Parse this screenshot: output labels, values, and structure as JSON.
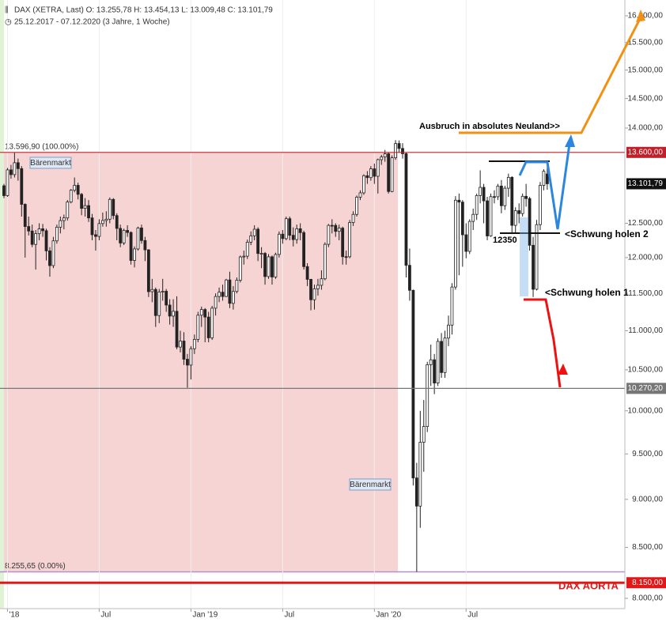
{
  "chart_data": {
    "type": "candlestick",
    "header": {
      "title": "DAX (XETRA, Last)  O: 13.255,78  H: 13.454,13  L: 13.009,48  C: 13.101,79",
      "period": "25.12.2017 - 07.12.2020 (3 Jahre, 1 Woche)"
    },
    "log_scale": true,
    "grid": true,
    "ylim": [
      8000,
      16000
    ],
    "yticks": [
      {
        "value": 8000,
        "label": "8.000,00"
      },
      {
        "value": 8500,
        "label": "8.500,00"
      },
      {
        "value": 9000,
        "label": "9.000,00"
      },
      {
        "value": 9500,
        "label": "9.500,00"
      },
      {
        "value": 10000,
        "label": "10.000,00"
      },
      {
        "value": 10500,
        "label": "10.500,00"
      },
      {
        "value": 11000,
        "label": "11.000,00"
      },
      {
        "value": 11500,
        "label": "11.500,00"
      },
      {
        "value": 12000,
        "label": "12.000,00"
      },
      {
        "value": 12500,
        "label": "12.500,00"
      },
      {
        "value": 14000,
        "label": "14.000,00"
      },
      {
        "value": 14500,
        "label": "14.500,00"
      },
      {
        "value": 15000,
        "label": "15.000,00"
      },
      {
        "value": 15500,
        "label": "15.500,00"
      },
      {
        "value": 16000,
        "label": "16.000,00"
      }
    ],
    "xlim": [
      -1.12,
      176
    ],
    "xticks": [
      {
        "value": 1,
        "label": "'18"
      },
      {
        "value": 27,
        "label": "Jul"
      },
      {
        "value": 53,
        "label": "Jan '19"
      },
      {
        "value": 79,
        "label": "Jul"
      },
      {
        "value": 105,
        "label": "Jan '20"
      },
      {
        "value": 131,
        "label": "Jul"
      }
    ],
    "candles": {
      "open": [
        13070,
        12918,
        13320,
        13245,
        13434,
        13340,
        12785,
        12452,
        12385,
        12190,
        12346,
        12418,
        12390,
        12096,
        11886,
        12241,
        12442,
        12540,
        12580,
        12820,
        13001,
        13077,
        12938,
        12724,
        12766,
        12580,
        12331,
        12306,
        12496,
        12541,
        12561,
        12860,
        12615,
        12424,
        12210,
        12394,
        12364,
        11959,
        12124,
        12430,
        12246,
        12111,
        11523,
        11553,
        11200,
        11519,
        11529,
        11341,
        11193,
        11257,
        10788,
        10865,
        10633,
        10559,
        10767,
        10887,
        11205,
        11281,
        11180,
        10907,
        11299,
        11457,
        11516,
        11457,
        11685,
        11364,
        11526,
        11681,
        12009,
        12020,
        12222,
        12315,
        12412,
        12059,
        12060,
        11732,
        12011,
        11726,
        12045,
        12339,
        12274,
        12568,
        12323,
        12260,
        12419,
        12362,
        11872,
        11693,
        11413,
        11563,
        11611,
        11701,
        12191,
        12469,
        12468,
        12380,
        12428,
        12013,
        12012,
        12511,
        12633,
        12894,
        12961,
        13228,
        13198,
        13337,
        13219,
        13483,
        13526,
        13577,
        12982,
        13513,
        13744,
        13664,
        13579,
        11890,
        11542,
        9232,
        8928,
        9632,
        9815,
        10564,
        10626,
        10336,
        10861,
        10466,
        10904,
        11074,
        11587,
        12848,
        12819,
        12330,
        12089,
        12528,
        12633,
        12919,
        13046,
        12838,
        12313,
        12903,
        12901,
        13066,
        12764,
        13033,
        13202,
        12469,
        12689,
        12645,
        12908,
        12873,
        12177,
        11556,
        12480,
        13077,
        13255.78
      ],
      "high": [
        13100,
        13350,
        13400,
        13597,
        13500,
        13380,
        12800,
        12600,
        12480,
        12400,
        12500,
        12490,
        12420,
        12150,
        12300,
        12480,
        12600,
        12630,
        12850,
        13020,
        13200,
        13120,
        12960,
        12880,
        12850,
        12640,
        12400,
        12560,
        12660,
        12680,
        12890,
        12880,
        12650,
        12480,
        12420,
        12470,
        12380,
        12160,
        12450,
        12480,
        12300,
        12120,
        11700,
        11580,
        11560,
        11700,
        11560,
        11420,
        11420,
        11460,
        11000,
        10980,
        10700,
        10800,
        10950,
        11250,
        11320,
        11300,
        11250,
        11330,
        11500,
        11580,
        11620,
        11700,
        11800,
        11600,
        11720,
        12030,
        12100,
        12260,
        12380,
        12470,
        12440,
        12150,
        12080,
        12050,
        12030,
        12070,
        12380,
        12400,
        12600,
        12600,
        12440,
        12480,
        12500,
        12390,
        11920,
        11700,
        11620,
        11700,
        11820,
        12220,
        12490,
        12560,
        12500,
        12480,
        12450,
        12100,
        12550,
        12680,
        12920,
        13000,
        13250,
        13300,
        13380,
        13420,
        13500,
        13560,
        13640,
        13600,
        13550,
        13800,
        13795,
        13750,
        13600,
        12130,
        11550,
        9400,
        10000,
        10130,
        10600,
        10820,
        10700,
        10900,
        10970,
        11000,
        11200,
        11640,
        12910,
        12950,
        12850,
        12500,
        12560,
        12720,
        12950,
        13313,
        13100,
        12900,
        12950,
        13000,
        13100,
        13160,
        13070,
        13260,
        13220,
        12740,
        12800,
        12950,
        13100,
        12900,
        12300,
        12550,
        13130,
        13330,
        13454.13
      ],
      "low": [
        12880,
        12900,
        13180,
        13200,
        13150,
        12600,
        12000,
        12320,
        12150,
        11830,
        12250,
        12300,
        11960,
        11730,
        11850,
        12200,
        12350,
        12410,
        12540,
        12800,
        12970,
        12860,
        12620,
        12600,
        12520,
        12250,
        12100,
        12250,
        12450,
        12450,
        12500,
        12560,
        12250,
        12150,
        12180,
        12300,
        11900,
        11860,
        12100,
        12200,
        11950,
        11450,
        11380,
        11050,
        11100,
        11400,
        11250,
        11080,
        11050,
        10760,
        10720,
        10560,
        10279,
        10380,
        10700,
        10850,
        11050,
        10850,
        10850,
        10880,
        11200,
        11380,
        11400,
        11450,
        11300,
        11280,
        11500,
        11650,
        11900,
        11980,
        12180,
        12250,
        11950,
        11850,
        11620,
        11700,
        11620,
        11700,
        12000,
        12200,
        12250,
        12250,
        12160,
        12200,
        12250,
        11830,
        11600,
        11270,
        11280,
        11470,
        11550,
        11680,
        12150,
        12350,
        12300,
        12250,
        11900,
        11900,
        11990,
        12460,
        12600,
        12850,
        12930,
        13100,
        13150,
        13100,
        12950,
        13400,
        13450,
        12950,
        12970,
        13480,
        13600,
        13500,
        11720,
        11400,
        9150,
        8256,
        8700,
        9300,
        9750,
        10300,
        10200,
        10300,
        10400,
        10400,
        10800,
        10950,
        11550,
        11750,
        11870,
        11990,
        12050,
        12400,
        12550,
        12800,
        12500,
        12250,
        12300,
        12800,
        12850,
        12650,
        12700,
        12900,
        12340,
        12350,
        12500,
        12600,
        12750,
        12100,
        11450,
        11540,
        12400,
        13000,
        13009.48
      ],
      "close": [
        12918,
        13320,
        13245,
        13434,
        13340,
        12785,
        12452,
        12385,
        12190,
        12346,
        12418,
        12390,
        12096,
        11886,
        12241,
        12442,
        12540,
        12580,
        12820,
        13001,
        13077,
        12938,
        12724,
        12766,
        12580,
        12331,
        12306,
        12496,
        12541,
        12561,
        12860,
        12615,
        12424,
        12210,
        12394,
        12364,
        11959,
        12124,
        12430,
        12246,
        12111,
        11523,
        11553,
        11200,
        11519,
        11529,
        11341,
        11193,
        11257,
        10788,
        10865,
        10633,
        10559,
        10767,
        10887,
        11205,
        11281,
        11180,
        10907,
        11299,
        11457,
        11516,
        11457,
        11685,
        11364,
        11526,
        11681,
        12009,
        12020,
        12222,
        12315,
        12412,
        12059,
        12060,
        11732,
        12011,
        11726,
        12045,
        12339,
        12274,
        12568,
        12323,
        12260,
        12419,
        12362,
        11872,
        11693,
        11413,
        11563,
        11611,
        11701,
        12191,
        12469,
        12468,
        12380,
        12428,
        12013,
        12012,
        12511,
        12633,
        12894,
        12961,
        13228,
        13198,
        13337,
        13219,
        13483,
        13526,
        13577,
        12982,
        13513,
        13744,
        13664,
        13579,
        11890,
        11542,
        9232,
        8928,
        9632,
        9815,
        10564,
        10626,
        10336,
        10861,
        10466,
        10904,
        11074,
        11587,
        12848,
        12819,
        12330,
        12089,
        12528,
        12633,
        12919,
        13046,
        12838,
        12313,
        12903,
        12901,
        13066,
        12764,
        13033,
        13202,
        12469,
        12689,
        12645,
        12908,
        12873,
        12177,
        11556,
        12480,
        13077,
        13298,
        13101.79
      ],
      "up_color": "#ffffff",
      "down_color": "#222222"
    },
    "fib": {
      "high": 13596.9,
      "low": 8255.65,
      "high_label": "13.596,90 (100.00%)",
      "low_label": "8.255,65 (0.00%)",
      "fill": "#f7d4d4",
      "low_line_color": "#b090c8"
    },
    "levels": [
      {
        "value": 13600,
        "label": "13.600,00",
        "color": "#c0202a",
        "line": true
      },
      {
        "value": 13101.79,
        "label": "13.101,79",
        "color": "#111111",
        "line": false
      },
      {
        "value": 10270.2,
        "label": "10.270,20",
        "color": "#777777",
        "line": true
      },
      {
        "value": 8150,
        "label": "8.150,00",
        "color": "#e01818",
        "line": true
      }
    ],
    "annotations": [
      "Bärenmarkt",
      "Bärenmarkt",
      "Ausbruch in absolutes Neuland>>",
      "<Schwung holen 2",
      "12350",
      "<Schwung holen 1",
      "DAX AORTA"
    ]
  }
}
